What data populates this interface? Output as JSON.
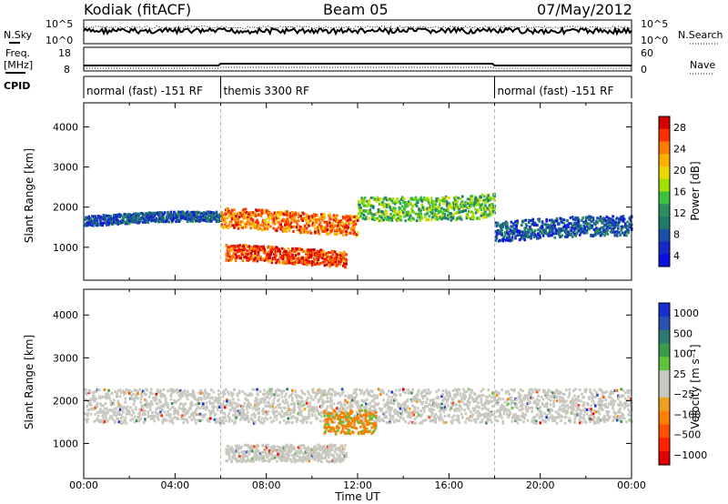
{
  "header": {
    "station": "Kodiak (fitACF)",
    "beam": "Beam 05",
    "date": "07/May/2012"
  },
  "top_panels": {
    "nsky_label": "N.Sky",
    "nsearch_label": "N.Search",
    "freq_label_1": "Freq.",
    "freq_label_2": "[MHz]",
    "nave_label": "Nave",
    "cpid_label": "CPID",
    "noise_ticks": [
      "10^5",
      "10^0"
    ],
    "freq_ticks": [
      "18",
      "8"
    ],
    "nave_ticks": [
      "60",
      "0"
    ],
    "cpid_segments": [
      {
        "label": "normal (fast) -151 RF",
        "start_h": 0,
        "end_h": 6
      },
      {
        "label": "themis 3300 RF",
        "start_h": 6,
        "end_h": 18
      },
      {
        "label": "normal (fast) -151 RF",
        "start_h": 18,
        "end_h": 24
      }
    ]
  },
  "chart_data": [
    {
      "type": "heatmap",
      "name": "power",
      "ylabel": "Slant Range [km]",
      "xlabel": "Time UT",
      "xlim": [
        0,
        24
      ],
      "ylim": [
        180,
        4600
      ],
      "yticks": [
        "1000",
        "2000",
        "3000",
        "4000"
      ],
      "xticks": [
        "00:00",
        "04:00",
        "08:00",
        "12:00",
        "16:00",
        "20:00",
        "00:00"
      ],
      "colorbar": {
        "label": "Power [dB]",
        "ticks": [
          "28",
          "24",
          "20",
          "16",
          "12",
          "8",
          "4"
        ],
        "colors": [
          "#d40000",
          "#ff3000",
          "#ff7a00",
          "#ffb000",
          "#e6d800",
          "#9ee000",
          "#3cc040",
          "#2a9060",
          "#1f7a6a",
          "#1a4fa8",
          "#1628c8",
          "#0a10e0"
        ]
      },
      "bands": [
        {
          "t0": 0,
          "t1": 6,
          "r0": 1550,
          "r1": 1800,
          "v": 7
        },
        {
          "t0": 6,
          "t1": 12,
          "r0": 1400,
          "r1": 1900,
          "v": 26
        },
        {
          "t0": 12,
          "t1": 18,
          "r0": 1800,
          "r1": 2400,
          "v": 16
        },
        {
          "t0": 6.2,
          "t1": 11.5,
          "r0": 600,
          "r1": 1000,
          "v": 28
        },
        {
          "t0": 18,
          "t1": 24,
          "r0": 1200,
          "r1": 1700,
          "v": 8
        }
      ]
    },
    {
      "type": "heatmap",
      "name": "velocity",
      "ylabel": "Slant Range [km]",
      "xlabel": "Time UT",
      "xlim": [
        0,
        24
      ],
      "ylim": [
        180,
        4600
      ],
      "yticks": [
        "1000",
        "2000",
        "3000",
        "4000"
      ],
      "xticks": [
        "00:00",
        "04:00",
        "08:00",
        "12:00",
        "16:00",
        "20:00",
        "00:00"
      ],
      "colorbar": {
        "label": "Velocity [m s⁻¹]",
        "ticks": [
          "1000",
          "500",
          "100",
          "25",
          "−25",
          "−100",
          "−500",
          "−1000"
        ],
        "colors": [
          "#1a2ed0",
          "#2a50b0",
          "#2f7a70",
          "#3a9a4a",
          "#5ec43a",
          "#c8c8c0",
          "#c8c8c0",
          "#f0a020",
          "#ff8000",
          "#ff5000",
          "#ff2000",
          "#e00000"
        ]
      },
      "bands": [
        {
          "t0": 0,
          "t1": 24,
          "r0": 1500,
          "r1": 2300,
          "v": 0
        },
        {
          "t0": 10.5,
          "t1": 12.8,
          "r0": 1250,
          "r1": 1800,
          "v": -150
        },
        {
          "t0": 6.2,
          "t1": 11.5,
          "r0": 600,
          "r1": 1000,
          "v": 0
        }
      ]
    }
  ]
}
